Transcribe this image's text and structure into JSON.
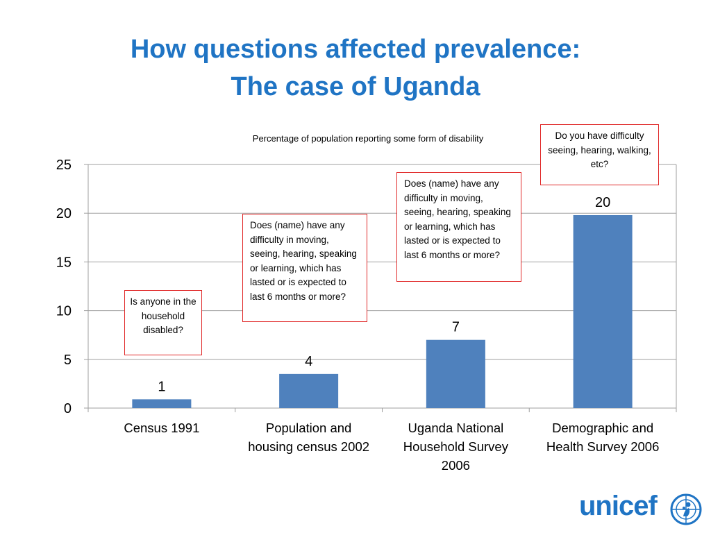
{
  "slide": {
    "title_line1": "How questions affected prevalence:",
    "title_line2": "The case of Uganda",
    "subtitle": "Percentage of population reporting some form of disability"
  },
  "chart_data": {
    "type": "bar",
    "categories": [
      "Census 1991",
      "Population and housing census 2002",
      "Uganda National Household Survey 2006",
      "Demographic and Health Survey 2006"
    ],
    "category_lines": [
      [
        "Census 1991"
      ],
      [
        "Population and",
        "housing census 2002"
      ],
      [
        "Uganda National",
        "Household Survey",
        "2006"
      ],
      [
        "Demographic and",
        "Health Survey 2006"
      ]
    ],
    "values": [
      0.9,
      3.5,
      7.0,
      19.8
    ],
    "data_labels": [
      "1",
      "4",
      "7",
      "20"
    ],
    "ylim": [
      0,
      25
    ],
    "yticks": [
      0,
      5,
      10,
      15,
      20,
      25
    ],
    "grid": true,
    "bar_color": "#4f81bd",
    "grid_color": "#9f9f9f"
  },
  "annotations": [
    "Is anyone in the household disabled?",
    "Does (name) have any difficulty in moving, seeing, hearing, speaking or learning, which has lasted or is expected to last 6 months or more?",
    "Does (name) have any difficulty in moving, seeing, hearing, speaking or learning, which has lasted or is expected to last 6 months or more?",
    "Do you have difficulty seeing, hearing, walking, etc?"
  ],
  "colors": {
    "title": "#1f74c4",
    "annotation_border": "#e02727",
    "logo": "#1f74c4"
  },
  "logo": {
    "text": "unicef",
    "icon": "unicef-emblem-icon"
  }
}
